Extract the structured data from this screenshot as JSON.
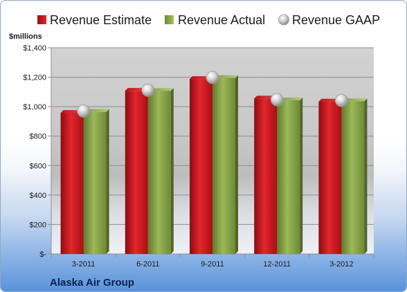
{
  "chart_data": {
    "type": "bar",
    "unit_label": "$millions",
    "company": "Alaska Air Group",
    "categories": [
      "3-2011",
      "6-2011",
      "9-2011",
      "12-2011",
      "3-2012"
    ],
    "series": [
      {
        "name": "Revenue Estimate",
        "type": "bar",
        "color": "#c8161d",
        "values": [
          958,
          1108,
          1188,
          1055,
          1035
        ]
      },
      {
        "name": "Revenue Actual",
        "type": "bar",
        "color": "#8aa64a",
        "values": [
          964,
          1107,
          1195,
          1043,
          1037
        ]
      },
      {
        "name": "Revenue GAAP",
        "type": "marker",
        "color": "#c9c9c9",
        "values": [
          970,
          1112,
          1198,
          1048,
          1042
        ]
      }
    ],
    "ylim": [
      0,
      1400
    ],
    "yticks": [
      0,
      200,
      400,
      600,
      800,
      1000,
      1200,
      1400
    ],
    "ytick_labels": [
      "$-",
      "$200",
      "$400",
      "$600",
      "$800",
      "$1,000",
      "$1,200",
      "$1,400"
    ],
    "grid": true,
    "legend_position": "top"
  }
}
